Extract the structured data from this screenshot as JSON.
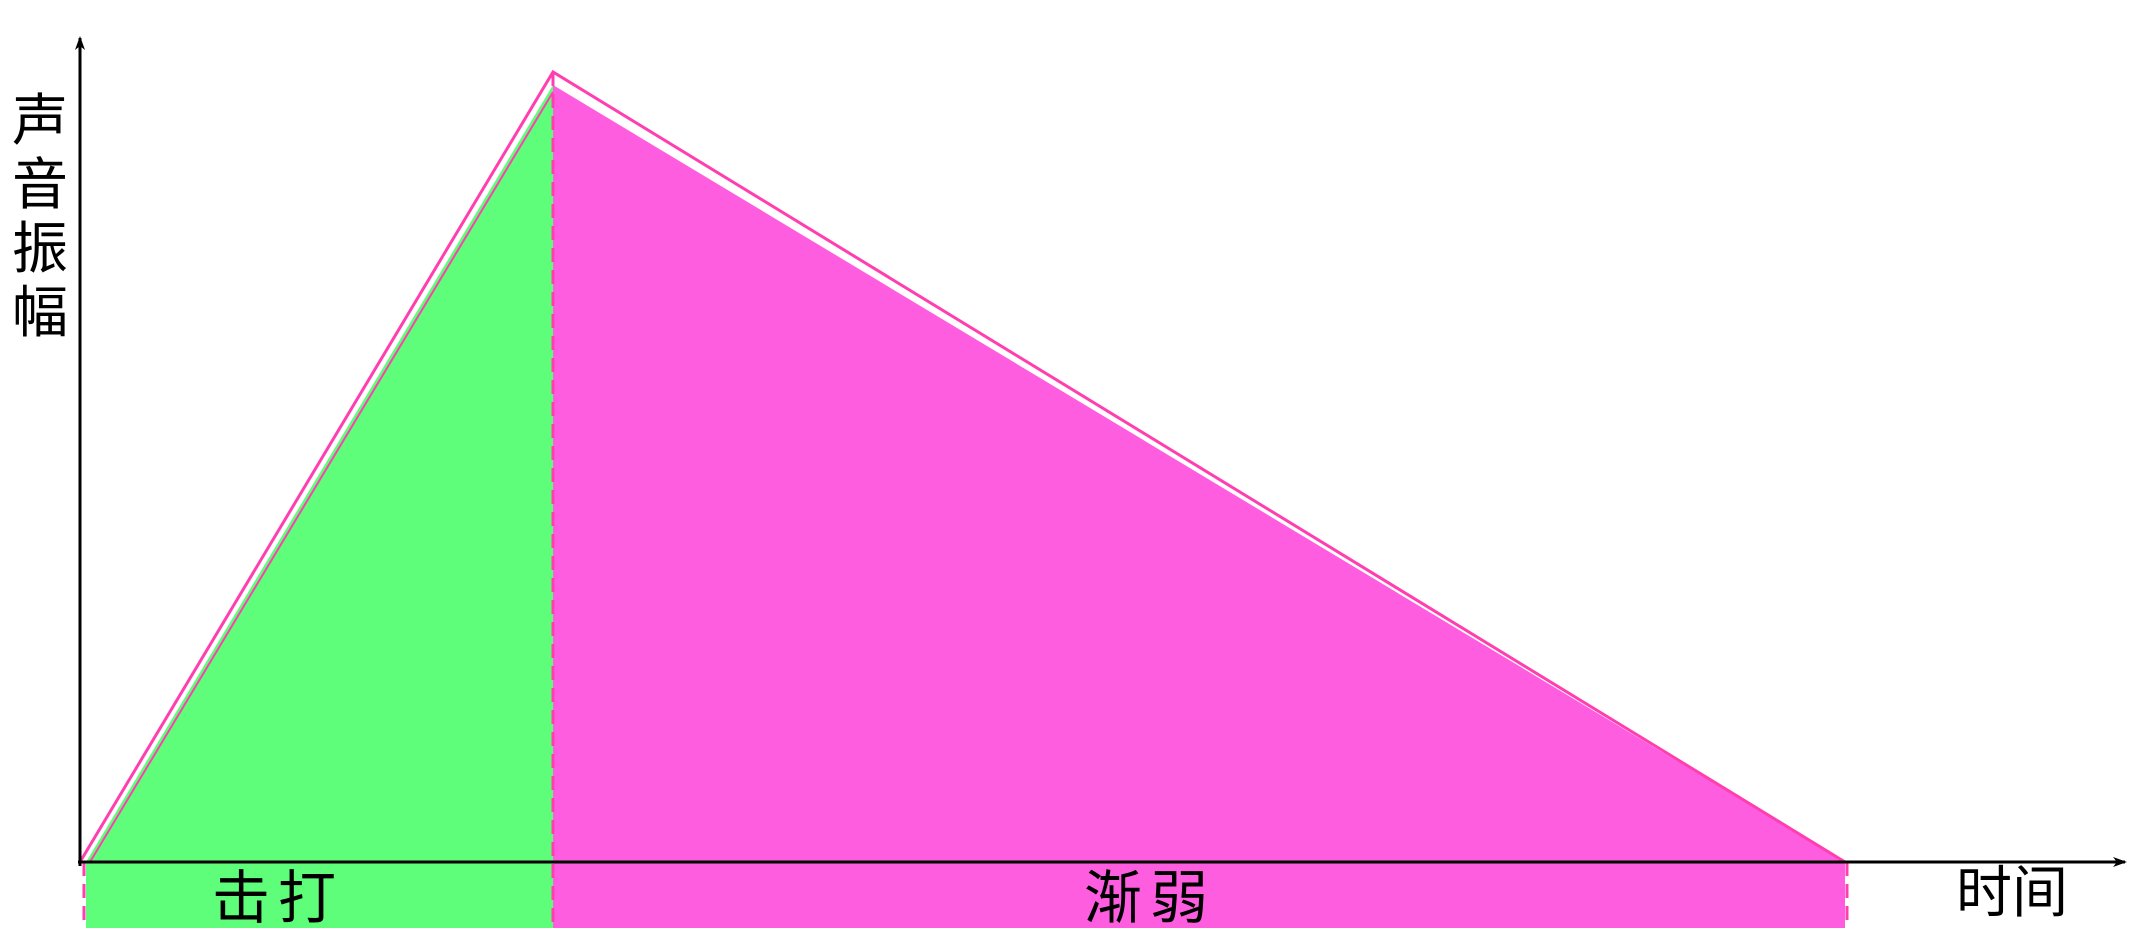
{
  "diagram": {
    "y_axis_label": "声音振幅",
    "x_axis_label": "时间",
    "phases": [
      {
        "label": "击打",
        "color": "#5ffe7a"
      },
      {
        "label": "渐弱",
        "color": "#ff5de0"
      }
    ],
    "outline_color": "#ff3fb0",
    "axis_color": "#000000"
  }
}
